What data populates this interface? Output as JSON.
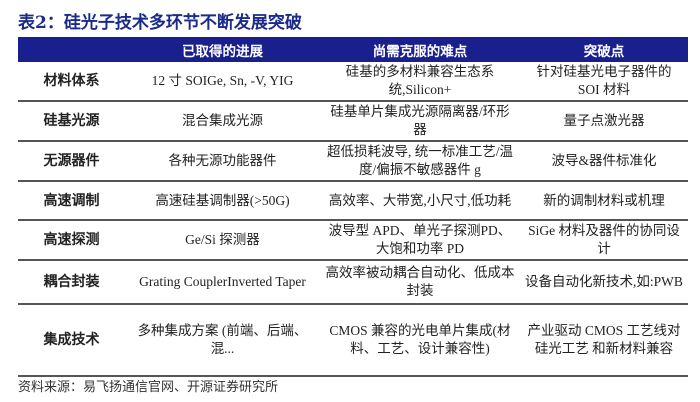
{
  "title": "表2：硅光子技术多环节不断发展突破",
  "headers": [
    "",
    "已取得的进展",
    "尚需克服的难点",
    "突破点"
  ],
  "rows": [
    [
      "材料体系",
      "12 寸 SOIGe, Sn, -V, YIG",
      "硅基的多材料兼容生态系统,Silicon+",
      "针对硅基光电子器件的 SOI 材料"
    ],
    [
      "硅基光源",
      "混合集成光源",
      "硅基单片集成光源隔离器/环形器",
      "量子点激光器"
    ],
    [
      "无源器件",
      "各种无源功能器件",
      "超低损耗波导, 统一标准工艺/温度/偏振不敏感器件 g",
      "波导&器件标准化"
    ],
    [
      "高速调制",
      "高速硅基调制器(>50G)",
      "高效率、大带宽,小尺寸,低功耗",
      "新的调制材料或机理"
    ],
    [
      "高速探测",
      "Ge/Si 探测器",
      "波导型 APD、单光子探测PD、大饱和功率 PD",
      "SiGe 材料及器件的协同设计"
    ],
    [
      "耦合封装",
      "Grating CouplerInverted Taper",
      "高效率被动耦合自动化、低成本封装",
      "设备自动化新技术,如:PWB"
    ],
    [
      "集成技术",
      "多种集成方案 (前端、后端、混...",
      "CMOS 兼容的光电单片集成(材料、工艺、设计兼容性)",
      "产业驱动 CMOS 工艺线对硅光工艺 和新材料兼容"
    ]
  ],
  "source": "资料来源：易飞扬通信官网、开源证券研究所",
  "colors": {
    "header_bg": "#1a1f8e",
    "title": "#1c2a8a"
  }
}
